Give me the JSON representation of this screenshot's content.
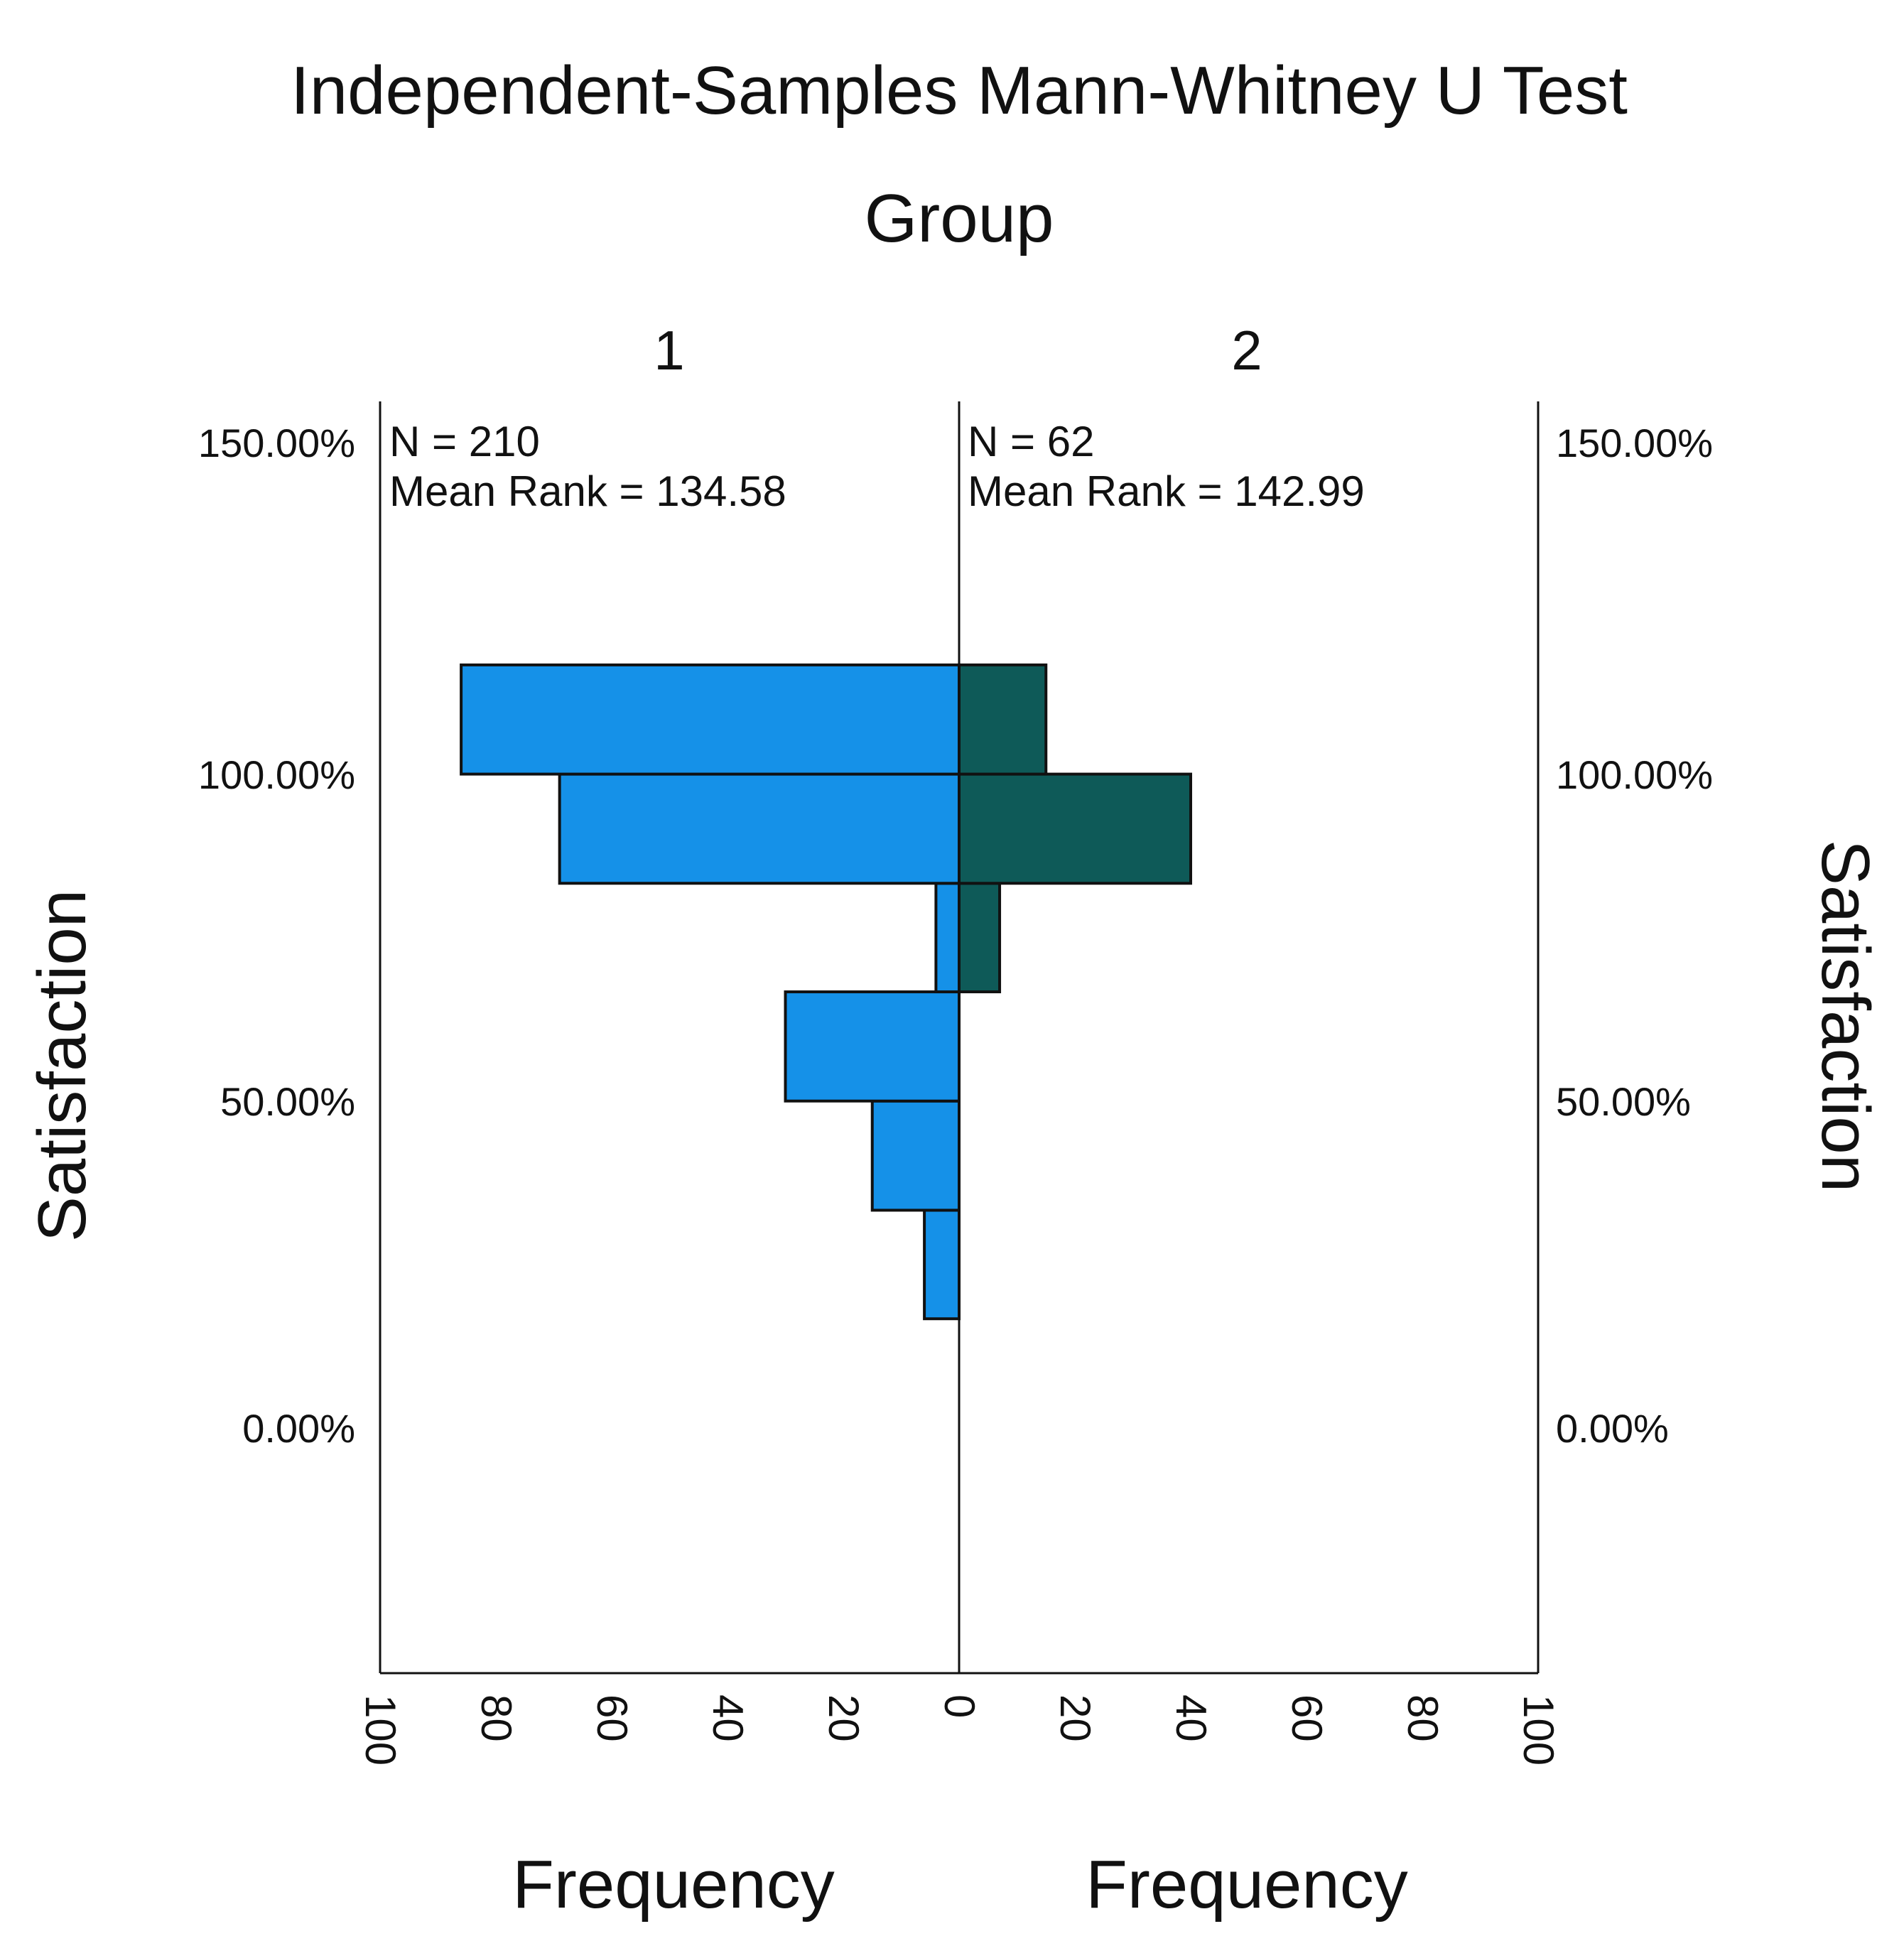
{
  "chart_data": {
    "type": "bar",
    "orientation": "horizontal",
    "layout": "back-to-back",
    "title": "Independent-Samples Mann-Whitney U Test",
    "group_axis_title": "Group",
    "ylabel_left": "Satisfaction",
    "ylabel_right": "Satisfaction",
    "xlabel_left": "Frequency",
    "xlabel_right": "Frequency",
    "y_ticks": [
      "0.00%",
      "50.00%",
      "100.00%",
      "150.00%"
    ],
    "y_tick_values": [
      0,
      50,
      100,
      150
    ],
    "ylim": [
      -37.5,
      157
    ],
    "x_ticks": [
      "100",
      "80",
      "60",
      "40",
      "20",
      "0",
      "20",
      "40",
      "60",
      "80",
      "100"
    ],
    "xlim": [
      0,
      100
    ],
    "grid": false,
    "groups": [
      {
        "label": "1",
        "n_text": "N = 210",
        "mean_rank_text": "Mean Rank = 134.58",
        "color": "#1591E8",
        "side": "left",
        "bins": [
          {
            "from": 16.7,
            "to": 33.3,
            "count": 6
          },
          {
            "from": 33.3,
            "to": 50.0,
            "count": 15
          },
          {
            "from": 50.0,
            "to": 66.7,
            "count": 30
          },
          {
            "from": 66.7,
            "to": 83.3,
            "count": 4
          },
          {
            "from": 83.3,
            "to": 100.0,
            "count": 69
          },
          {
            "from": 100.0,
            "to": 116.7,
            "count": 86
          }
        ]
      },
      {
        "label": "2",
        "n_text": "N = 62",
        "mean_rank_text": "Mean Rank = 142.99",
        "color": "#0E5A58",
        "side": "right",
        "bins": [
          {
            "from": 66.7,
            "to": 83.3,
            "count": 7
          },
          {
            "from": 83.3,
            "to": 100.0,
            "count": 40
          },
          {
            "from": 100.0,
            "to": 116.7,
            "count": 15
          }
        ]
      }
    ]
  }
}
